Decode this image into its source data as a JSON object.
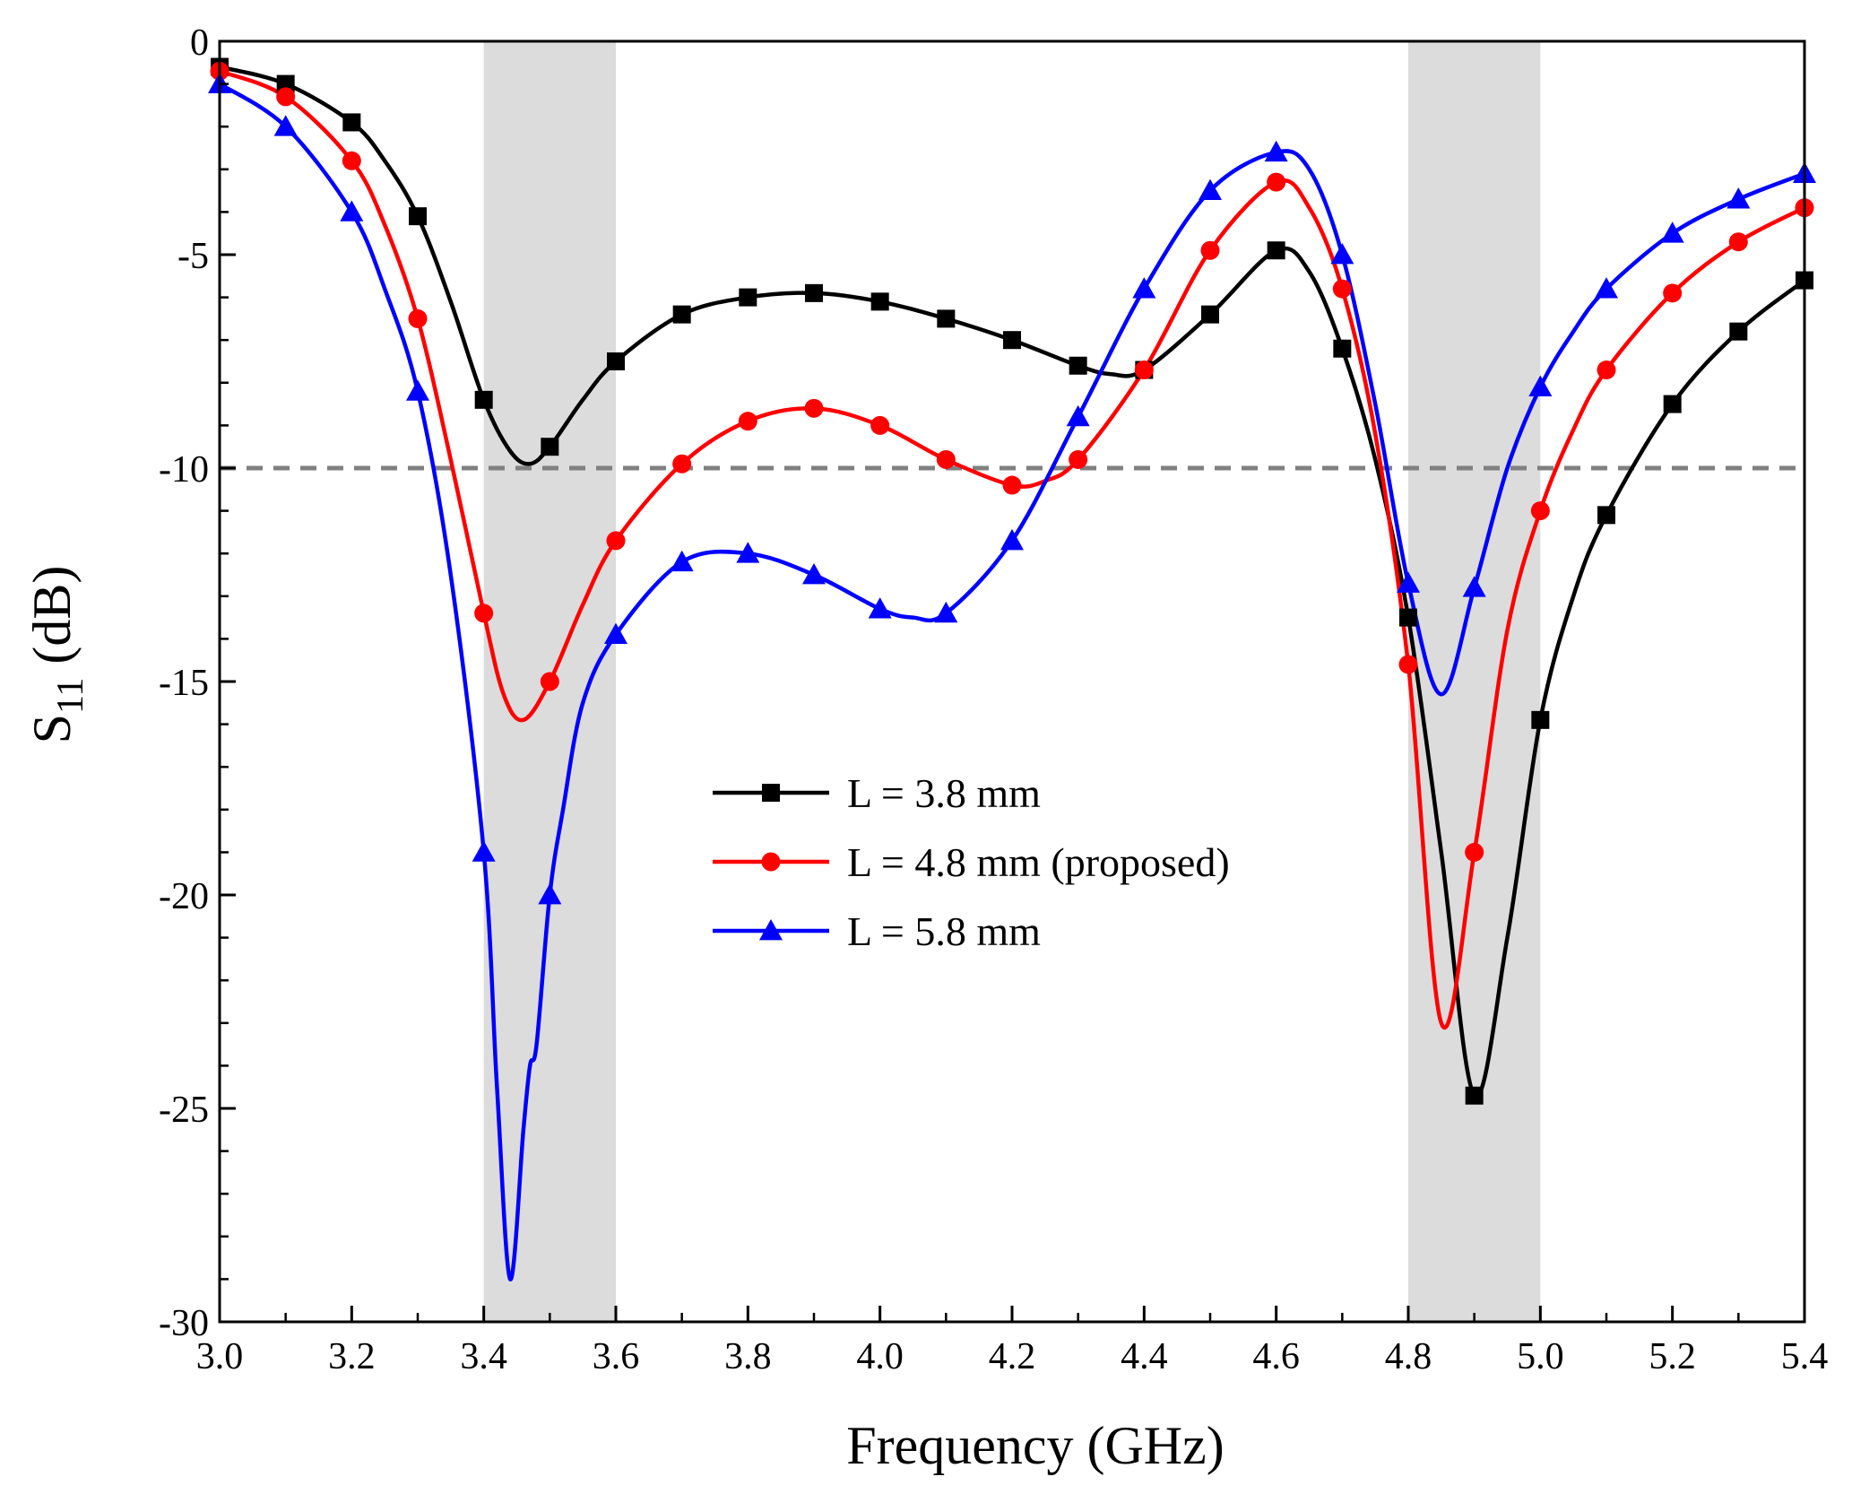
{
  "chart_data": {
    "type": "line",
    "title": "",
    "xlabel": "Frequency (GHz)",
    "ylabel_main": "S",
    "ylabel_sub": "11",
    "ylabel_unit": " (dB)",
    "xlim": [
      3.0,
      5.4
    ],
    "ylim": [
      -30,
      0
    ],
    "xticks": [
      3.0,
      3.2,
      3.4,
      3.6,
      3.8,
      4.0,
      4.2,
      4.4,
      4.6,
      4.8,
      5.0,
      5.2,
      5.4
    ],
    "xtick_labels": [
      "3.0",
      "3.2",
      "3.4",
      "3.6",
      "3.8",
      "4.0",
      "4.2",
      "4.4",
      "4.6",
      "4.8",
      "5.0",
      "5.2",
      "5.4"
    ],
    "yticks": [
      0,
      -5,
      -10,
      -15,
      -20,
      -25,
      -30
    ],
    "ytick_labels": [
      "0",
      "-5",
      "-10",
      "-15",
      "-20",
      "-25",
      "-30"
    ],
    "shaded_bands": [
      [
        3.4,
        3.6
      ],
      [
        4.8,
        5.0
      ]
    ],
    "reference_line": -10,
    "legend_position": "center",
    "colors": {
      "band": "#dcdcdc",
      "reference": "#808080"
    },
    "series": [
      {
        "name": "L = 3.8 mm",
        "color": "#000000",
        "marker": "square",
        "curve": [
          [
            3.0,
            -0.6
          ],
          [
            3.1,
            -1.0
          ],
          [
            3.2,
            -1.9
          ],
          [
            3.25,
            -2.8
          ],
          [
            3.3,
            -4.1
          ],
          [
            3.35,
            -6.1
          ],
          [
            3.4,
            -8.4
          ],
          [
            3.44,
            -9.6
          ],
          [
            3.47,
            -9.9
          ],
          [
            3.5,
            -9.5
          ],
          [
            3.55,
            -8.4
          ],
          [
            3.6,
            -7.5
          ],
          [
            3.7,
            -6.4
          ],
          [
            3.8,
            -6.0
          ],
          [
            3.9,
            -5.9
          ],
          [
            4.0,
            -6.1
          ],
          [
            4.1,
            -6.5
          ],
          [
            4.2,
            -7.0
          ],
          [
            4.3,
            -7.6
          ],
          [
            4.35,
            -7.8
          ],
          [
            4.4,
            -7.7
          ],
          [
            4.5,
            -6.4
          ],
          [
            4.6,
            -4.9
          ],
          [
            4.65,
            -5.4
          ],
          [
            4.7,
            -7.2
          ],
          [
            4.75,
            -9.8
          ],
          [
            4.8,
            -13.5
          ],
          [
            4.85,
            -19.0
          ],
          [
            4.9,
            -24.7
          ],
          [
            4.95,
            -21.0
          ],
          [
            5.0,
            -15.9
          ],
          [
            5.05,
            -13.0
          ],
          [
            5.1,
            -11.1
          ],
          [
            5.2,
            -8.5
          ],
          [
            5.3,
            -6.8
          ],
          [
            5.4,
            -5.6
          ]
        ],
        "markers": [
          [
            3.0,
            -0.6
          ],
          [
            3.1,
            -1.0
          ],
          [
            3.2,
            -1.9
          ],
          [
            3.3,
            -4.1
          ],
          [
            3.4,
            -8.4
          ],
          [
            3.5,
            -9.5
          ],
          [
            3.6,
            -7.5
          ],
          [
            3.7,
            -6.4
          ],
          [
            3.8,
            -6.0
          ],
          [
            3.9,
            -5.9
          ],
          [
            4.0,
            -6.1
          ],
          [
            4.1,
            -6.5
          ],
          [
            4.2,
            -7.0
          ],
          [
            4.3,
            -7.6
          ],
          [
            4.4,
            -7.7
          ],
          [
            4.5,
            -6.4
          ],
          [
            4.6,
            -4.9
          ],
          [
            4.7,
            -7.2
          ],
          [
            4.8,
            -13.5
          ],
          [
            4.9,
            -24.7
          ],
          [
            5.0,
            -15.9
          ],
          [
            5.1,
            -11.1
          ],
          [
            5.2,
            -8.5
          ],
          [
            5.3,
            -6.8
          ],
          [
            5.4,
            -5.6
          ]
        ]
      },
      {
        "name": "L = 4.8 mm (proposed)",
        "color": "#ff0000",
        "marker": "circle",
        "curve": [
          [
            3.0,
            -0.7
          ],
          [
            3.1,
            -1.3
          ],
          [
            3.2,
            -2.8
          ],
          [
            3.25,
            -4.3
          ],
          [
            3.3,
            -6.5
          ],
          [
            3.35,
            -9.8
          ],
          [
            3.4,
            -13.4
          ],
          [
            3.43,
            -15.3
          ],
          [
            3.46,
            -15.9
          ],
          [
            3.5,
            -15.0
          ],
          [
            3.55,
            -13.2
          ],
          [
            3.6,
            -11.7
          ],
          [
            3.7,
            -9.9
          ],
          [
            3.8,
            -8.9
          ],
          [
            3.9,
            -8.6
          ],
          [
            4.0,
            -9.0
          ],
          [
            4.1,
            -9.8
          ],
          [
            4.2,
            -10.4
          ],
          [
            4.25,
            -10.3
          ],
          [
            4.3,
            -9.8
          ],
          [
            4.4,
            -7.7
          ],
          [
            4.5,
            -4.9
          ],
          [
            4.6,
            -3.3
          ],
          [
            4.65,
            -3.9
          ],
          [
            4.7,
            -5.8
          ],
          [
            4.75,
            -9.2
          ],
          [
            4.8,
            -14.6
          ],
          [
            4.85,
            -23.0
          ],
          [
            4.9,
            -19.0
          ],
          [
            4.95,
            -13.8
          ],
          [
            5.0,
            -11.0
          ],
          [
            5.05,
            -9.1
          ],
          [
            5.1,
            -7.7
          ],
          [
            5.2,
            -5.9
          ],
          [
            5.3,
            -4.7
          ],
          [
            5.4,
            -3.9
          ]
        ],
        "markers": [
          [
            3.0,
            -0.7
          ],
          [
            3.1,
            -1.3
          ],
          [
            3.2,
            -2.8
          ],
          [
            3.3,
            -6.5
          ],
          [
            3.4,
            -13.4
          ],
          [
            3.5,
            -15.0
          ],
          [
            3.6,
            -11.7
          ],
          [
            3.7,
            -9.9
          ],
          [
            3.8,
            -8.9
          ],
          [
            3.9,
            -8.6
          ],
          [
            4.0,
            -9.0
          ],
          [
            4.1,
            -9.8
          ],
          [
            4.2,
            -10.4
          ],
          [
            4.3,
            -9.8
          ],
          [
            4.4,
            -7.7
          ],
          [
            4.5,
            -4.9
          ],
          [
            4.6,
            -3.3
          ],
          [
            4.7,
            -5.8
          ],
          [
            4.8,
            -14.6
          ],
          [
            4.9,
            -19.0
          ],
          [
            5.0,
            -11.0
          ],
          [
            5.1,
            -7.7
          ],
          [
            5.2,
            -5.9
          ],
          [
            5.3,
            -4.7
          ],
          [
            5.4,
            -3.9
          ]
        ]
      },
      {
        "name": "L = 5.8 mm",
        "color": "#0000ff",
        "marker": "triangle",
        "curve": [
          [
            3.0,
            -1.0
          ],
          [
            3.1,
            -2.0
          ],
          [
            3.2,
            -4.0
          ],
          [
            3.25,
            -5.8
          ],
          [
            3.3,
            -8.2
          ],
          [
            3.35,
            -12.5
          ],
          [
            3.4,
            -19.0
          ],
          [
            3.42,
            -24.5
          ],
          [
            3.44,
            -29.0
          ],
          [
            3.46,
            -25.5
          ],
          [
            3.47,
            -24.0
          ],
          [
            3.48,
            -23.5
          ],
          [
            3.5,
            -20.0
          ],
          [
            3.52,
            -18.0
          ],
          [
            3.55,
            -15.5
          ],
          [
            3.6,
            -13.9
          ],
          [
            3.7,
            -12.2
          ],
          [
            3.8,
            -12.0
          ],
          [
            3.9,
            -12.5
          ],
          [
            4.0,
            -13.3
          ],
          [
            4.05,
            -13.5
          ],
          [
            4.1,
            -13.4
          ],
          [
            4.2,
            -11.7
          ],
          [
            4.3,
            -8.8
          ],
          [
            4.4,
            -5.8
          ],
          [
            4.5,
            -3.5
          ],
          [
            4.6,
            -2.6
          ],
          [
            4.65,
            -3.0
          ],
          [
            4.7,
            -5.0
          ],
          [
            4.75,
            -8.5
          ],
          [
            4.8,
            -12.7
          ],
          [
            4.85,
            -15.3
          ],
          [
            4.9,
            -12.8
          ],
          [
            4.95,
            -10.0
          ],
          [
            5.0,
            -8.1
          ],
          [
            5.05,
            -6.8
          ],
          [
            5.1,
            -5.8
          ],
          [
            5.2,
            -4.5
          ],
          [
            5.3,
            -3.7
          ],
          [
            5.4,
            -3.1
          ]
        ],
        "markers": [
          [
            3.0,
            -1.0
          ],
          [
            3.1,
            -2.0
          ],
          [
            3.2,
            -4.0
          ],
          [
            3.3,
            -8.2
          ],
          [
            3.4,
            -19.0
          ],
          [
            3.5,
            -20.0
          ],
          [
            3.6,
            -13.9
          ],
          [
            3.7,
            -12.2
          ],
          [
            3.8,
            -12.0
          ],
          [
            3.9,
            -12.5
          ],
          [
            4.0,
            -13.3
          ],
          [
            4.1,
            -13.4
          ],
          [
            4.2,
            -11.7
          ],
          [
            4.3,
            -8.8
          ],
          [
            4.4,
            -5.8
          ],
          [
            4.5,
            -3.5
          ],
          [
            4.6,
            -2.6
          ],
          [
            4.7,
            -5.0
          ],
          [
            4.8,
            -12.7
          ],
          [
            4.9,
            -12.8
          ],
          [
            5.0,
            -8.1
          ],
          [
            5.1,
            -5.8
          ],
          [
            5.2,
            -4.5
          ],
          [
            5.3,
            -3.7
          ],
          [
            5.4,
            -3.1
          ]
        ]
      }
    ]
  }
}
